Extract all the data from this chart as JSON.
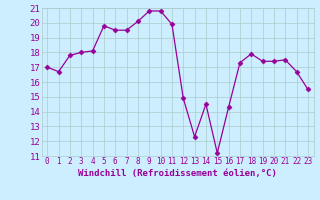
{
  "x": [
    0,
    1,
    2,
    3,
    4,
    5,
    6,
    7,
    8,
    9,
    10,
    11,
    12,
    13,
    14,
    15,
    16,
    17,
    18,
    19,
    20,
    21,
    22,
    23
  ],
  "y": [
    17.0,
    16.7,
    17.8,
    18.0,
    18.1,
    19.8,
    19.5,
    19.5,
    20.1,
    20.8,
    20.8,
    19.9,
    14.9,
    12.3,
    14.5,
    11.2,
    14.3,
    17.3,
    17.9,
    17.4,
    17.4,
    17.5,
    16.7,
    15.5
  ],
  "line_color": "#990099",
  "marker": "D",
  "marker_size": 2.5,
  "xlabel": "Windchill (Refroidissement éolien,°C)",
  "xlabel_color": "#990099",
  "ylim": [
    11,
    21
  ],
  "xlim": [
    -0.5,
    23.5
  ],
  "yticks": [
    11,
    12,
    13,
    14,
    15,
    16,
    17,
    18,
    19,
    20,
    21
  ],
  "xticks": [
    0,
    1,
    2,
    3,
    4,
    5,
    6,
    7,
    8,
    9,
    10,
    11,
    12,
    13,
    14,
    15,
    16,
    17,
    18,
    19,
    20,
    21,
    22,
    23
  ],
  "grid_color": "#aacccc",
  "bg_color": "#cceeff",
  "tick_label_color": "#990099",
  "xlabel_fontsize": 6.5,
  "ytick_fontsize": 6.5,
  "xtick_fontsize": 5.5
}
